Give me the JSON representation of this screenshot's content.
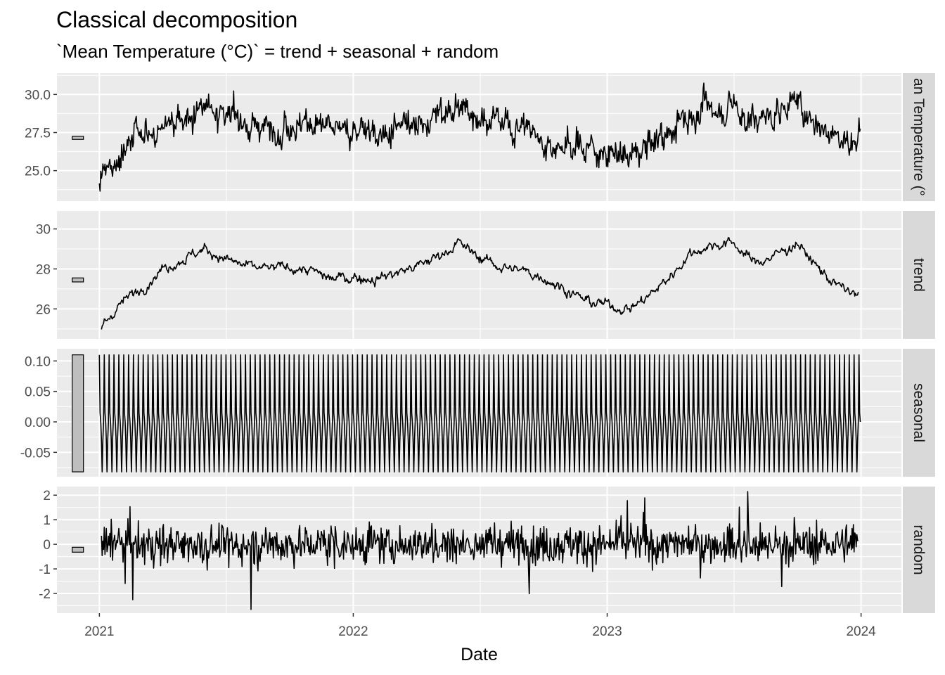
{
  "title": "Classical decomposition",
  "subtitle": "`Mean Temperature (°C)` = trend + seasonal + random",
  "chart_data": {
    "type": "line",
    "layout": "faceted",
    "xlabel": "Date",
    "x_range": [
      "2020-11-01",
      "2024-02-28"
    ],
    "x_ticks": [
      "2021",
      "2022",
      "2023",
      "2024"
    ],
    "background": "#ebebeb",
    "grid": true,
    "range_bars": true,
    "panels": [
      {
        "id": "observed",
        "label": "Mean Temperature (°C)",
        "visible_label": "an Temperature (°",
        "ylim": [
          23.0,
          31.4
        ],
        "yticks": [
          25.0,
          27.5,
          30.0
        ],
        "ytick_labels": [
          "25.0",
          "27.5",
          "30.0"
        ],
        "bar": [
          27.05,
          27.25
        ],
        "summary": {
          "start": 24.0,
          "min": 23.1,
          "max": 31.2,
          "end": 27.7
        },
        "x": [
          "2021-01-01",
          "2021-02-01",
          "2021-03-01",
          "2021-04-01",
          "2021-05-01",
          "2021-06-01",
          "2021-07-01",
          "2021-08-01",
          "2021-09-01",
          "2021-10-01",
          "2021-11-01",
          "2021-12-01",
          "2022-01-01",
          "2022-02-01",
          "2022-03-01",
          "2022-04-01",
          "2022-05-01",
          "2022-06-01",
          "2022-07-01",
          "2022-08-01",
          "2022-09-01",
          "2022-10-01",
          "2022-11-01",
          "2022-12-01",
          "2023-01-01",
          "2023-02-01",
          "2023-03-01",
          "2023-04-01",
          "2023-05-01",
          "2023-06-01",
          "2023-07-01",
          "2023-08-01",
          "2023-09-01",
          "2023-10-01",
          "2023-11-01",
          "2023-12-01",
          "2023-12-31"
        ],
        "y": [
          24.0,
          26.5,
          27.0,
          28.0,
          28.5,
          29.3,
          28.8,
          27.9,
          28.0,
          28.2,
          28.3,
          27.6,
          27.7,
          27.6,
          27.8,
          28.0,
          28.6,
          29.2,
          28.6,
          28.0,
          27.8,
          27.2,
          26.6,
          26.7,
          26.2,
          26.0,
          26.5,
          27.6,
          28.7,
          29.1,
          29.4,
          28.1,
          28.8,
          29.4,
          28.1,
          27.2,
          27.0
        ]
      },
      {
        "id": "trend",
        "label": "trend",
        "visible_label": "trend",
        "ylim": [
          24.5,
          30.9
        ],
        "yticks": [
          26,
          28,
          30
        ],
        "ytick_labels": [
          "26",
          "28",
          "30"
        ],
        "bar": [
          27.35,
          27.55
        ],
        "summary": {
          "start": 24.9,
          "min": 24.6,
          "max": 30.4,
          "end": 26.6
        },
        "x": [
          "2021-01-01",
          "2021-02-01",
          "2021-03-01",
          "2021-04-01",
          "2021-05-01",
          "2021-06-01",
          "2021-07-01",
          "2021-08-01",
          "2021-09-01",
          "2021-10-01",
          "2021-11-01",
          "2021-12-01",
          "2022-01-01",
          "2022-02-01",
          "2022-03-01",
          "2022-04-01",
          "2022-05-01",
          "2022-06-01",
          "2022-07-01",
          "2022-08-01",
          "2022-09-01",
          "2022-10-01",
          "2022-11-01",
          "2022-12-01",
          "2023-01-01",
          "2023-02-01",
          "2023-03-01",
          "2023-04-01",
          "2023-05-01",
          "2023-06-01",
          "2023-07-01",
          "2023-08-01",
          "2023-09-01",
          "2023-10-01",
          "2023-11-01",
          "2023-12-01",
          "2023-12-31"
        ],
        "y": [
          25.0,
          26.3,
          27.0,
          28.0,
          28.5,
          29.0,
          28.5,
          28.1,
          28.0,
          28.1,
          27.9,
          27.5,
          27.6,
          27.5,
          27.8,
          28.1,
          28.6,
          29.3,
          28.6,
          28.1,
          27.9,
          27.6,
          27.0,
          26.4,
          26.2,
          26.0,
          26.6,
          27.6,
          28.8,
          29.2,
          29.3,
          28.3,
          28.7,
          29.3,
          28.0,
          27.1,
          26.6
        ]
      },
      {
        "id": "seasonal",
        "label": "seasonal",
        "visible_label": "seasonal",
        "ylim": [
          -0.09,
          0.12
        ],
        "yticks": [
          -0.05,
          0.0,
          0.05,
          0.1
        ],
        "ytick_labels": [
          "-0.05",
          "0.00",
          "0.05",
          "0.10"
        ],
        "bar": [
          -0.082,
          0.11
        ],
        "period_days": 7,
        "pattern": [
          0.11,
          0.015,
          0.0,
          -0.03,
          -0.082,
          -0.03,
          0.0
        ]
      },
      {
        "id": "random",
        "label": "random",
        "visible_label": "random",
        "ylim": [
          -2.8,
          2.35
        ],
        "yticks": [
          -2,
          -1,
          0,
          1,
          2
        ],
        "ytick_labels": [
          "-2",
          "-1",
          "0",
          "1",
          "2"
        ],
        "bar": [
          -0.32,
          -0.12
        ],
        "summary": {
          "min": -2.65,
          "max": 2.15,
          "mean": 0.0
        }
      }
    ]
  }
}
